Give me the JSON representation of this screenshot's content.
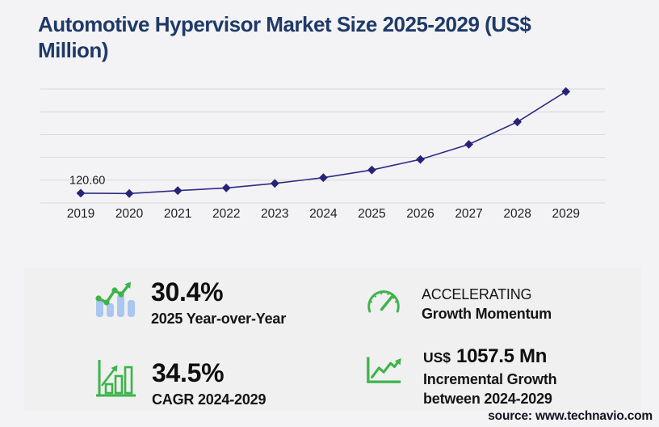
{
  "title": {
    "full": "Automotive Hypervisor Market Size 2025-2029 (US$ Million)",
    "line1": "Automotive Hypervisor Market Size 2025-2029 (US$",
    "line2": "Million)"
  },
  "source_text": "source: www.technavio.com",
  "colors": {
    "background": "#f3f3f5",
    "panel": "#f0f0f0",
    "title": "#1f3a68",
    "line": "#2e2b85",
    "marker": "#262378",
    "grid": "#d7d7d9",
    "axis_text": "#1f1f1f",
    "data_label_text": "#1a1a1a",
    "green": "#3cb44a",
    "bar_blue": "#a9c7f0",
    "stat_text": "#141414"
  },
  "chart_data": {
    "type": "line",
    "title": "Automotive Hypervisor Market Size 2025-2029 (US$ Million)",
    "x": [
      "2019",
      "2020",
      "2021",
      "2022",
      "2023",
      "2024",
      "2025",
      "2026",
      "2027",
      "2028",
      "2029"
    ],
    "series": [
      {
        "name": "Automotive hypervisor market size (US$ Million)",
        "values": [
          120.6,
          116.5,
          152,
          185,
          240,
          310.9,
          405.4,
          535,
          720,
          995,
          1368.4
        ]
      }
    ],
    "first_point_label": "120.60",
    "xlabel": "",
    "ylabel": "",
    "ylim": [
      0,
      1400
    ],
    "gridline_count": 6,
    "grid": "horizontal-only",
    "legend_position": "none",
    "marker_shape": "diamond"
  },
  "stats": [
    {
      "icon": "bar-chart-trend-icon",
      "value": "30.4%",
      "label": "2025 Year-over-Year"
    },
    {
      "icon": "speedometer-icon",
      "value": "ACCELERATING",
      "label": "Growth Momentum"
    },
    {
      "icon": "growth-bars-icon",
      "value": "34.5%",
      "label": "CAGR 2024-2029"
    },
    {
      "icon": "trend-arrow-icon",
      "value_prefix": "US$",
      "value": "1057.5 Mn",
      "label": "Incremental Growth",
      "label2": "between 2024-2029"
    }
  ]
}
